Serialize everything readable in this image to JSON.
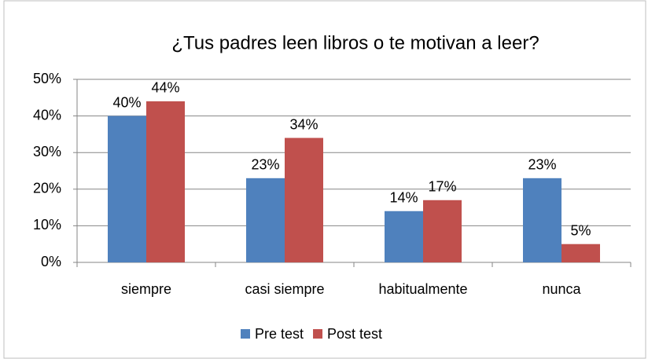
{
  "chart_data": {
    "type": "bar",
    "title": "¿Tus padres leen libros o te motivan a leer?",
    "categories": [
      "siempre",
      "casi siempre",
      "habitualmente",
      "nunca"
    ],
    "series": [
      {
        "name": "Pre test",
        "color": "#4f81bd",
        "values": [
          40,
          23,
          14,
          23
        ],
        "value_labels": [
          "40%",
          "23%",
          "14%",
          "23%"
        ]
      },
      {
        "name": "Post test",
        "color": "#c0504d",
        "values": [
          44,
          34,
          17,
          5
        ],
        "value_labels": [
          "44%",
          "34%",
          "17%",
          "5%"
        ]
      }
    ],
    "ylim": [
      0,
      50
    ],
    "yticks": [
      {
        "value": 0,
        "label": "0%"
      },
      {
        "value": 10,
        "label": "10%"
      },
      {
        "value": 20,
        "label": "20%"
      },
      {
        "value": 30,
        "label": "30%"
      },
      {
        "value": 40,
        "label": "40%"
      },
      {
        "value": 50,
        "label": "50%"
      }
    ],
    "grid": true,
    "legend": "bottom"
  }
}
